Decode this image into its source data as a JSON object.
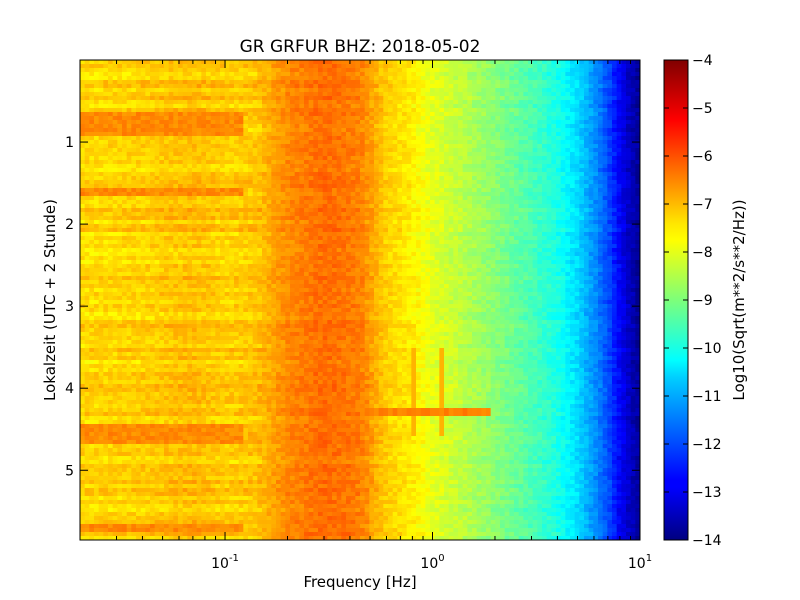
{
  "chart_data": {
    "type": "heatmap",
    "title": "GR GRFUR BHZ: 2018-05-02",
    "xlabel": "Frequency [Hz]",
    "ylabel": "Lokalzeit (UTC + 2 Stunde)",
    "x_scale": "log",
    "xlim": [
      0.02,
      10
    ],
    "ylim": [
      5.85,
      0
    ],
    "x_ticks": [
      {
        "value": 0.1,
        "base": "10",
        "exp": "-1"
      },
      {
        "value": 1,
        "base": "10",
        "exp": "0"
      },
      {
        "value": 10,
        "base": "10",
        "exp": "1"
      }
    ],
    "y_ticks": [
      {
        "value": 1,
        "label": "1"
      },
      {
        "value": 2,
        "label": "2"
      },
      {
        "value": 3,
        "label": "3"
      },
      {
        "value": 4,
        "label": "4"
      },
      {
        "value": 5,
        "label": "5"
      }
    ],
    "colormap": "jet",
    "colorbar": {
      "label": "Log10(Sqrt(m**2/s**2/Hz))",
      "range": [
        -14,
        -4
      ],
      "ticks": [
        {
          "value": -4,
          "label": "−4"
        },
        {
          "value": -5,
          "label": "−5"
        },
        {
          "value": -6,
          "label": "−6"
        },
        {
          "value": -7,
          "label": "−7"
        },
        {
          "value": -8,
          "label": "−8"
        },
        {
          "value": -9,
          "label": "−9"
        },
        {
          "value": -10,
          "label": "−10"
        },
        {
          "value": -11,
          "label": "−11"
        },
        {
          "value": -12,
          "label": "−12"
        },
        {
          "value": -13,
          "label": "−13"
        },
        {
          "value": -14,
          "label": "−14"
        }
      ]
    },
    "spectrum_profile": {
      "frequency_hz": [
        0.02,
        0.04,
        0.07,
        0.1,
        0.14,
        0.2,
        0.3,
        0.45,
        0.6,
        0.8,
        1.0,
        1.5,
        2.0,
        3.0,
        4.0,
        5.0,
        6.0,
        7.0,
        8.0,
        9.0,
        10.0
      ],
      "level": [
        -7.4,
        -7.3,
        -7.1,
        -7.3,
        -7.2,
        -6.6,
        -6.3,
        -6.5,
        -7.3,
        -7.6,
        -8.0,
        -8.5,
        -8.9,
        -9.5,
        -10.0,
        -10.6,
        -11.3,
        -12.0,
        -12.8,
        -13.4,
        -13.8
      ]
    },
    "features": [
      {
        "name": "narrow-band-event",
        "time": 4.28,
        "freq_range": [
          0.2,
          1.9
        ],
        "level": -6.5
      },
      {
        "name": "low-frequency-bursts",
        "times": [
          0.7,
          0.85,
          1.6,
          4.5,
          4.6,
          5.7
        ],
        "freq_range": [
          0.02,
          0.12
        ],
        "level": -6.6
      },
      {
        "name": "line-feature",
        "freq": 0.83,
        "level": -7.0
      },
      {
        "name": "line-feature",
        "freq": 1.1,
        "level": -7.0
      }
    ]
  }
}
